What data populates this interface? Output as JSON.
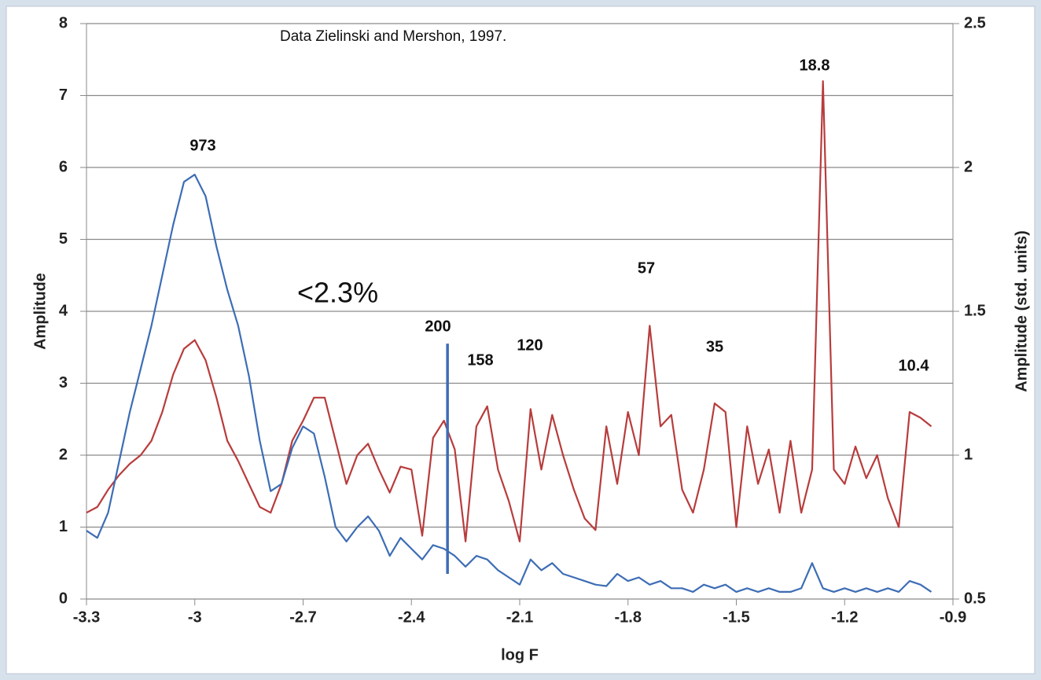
{
  "chart_data": {
    "type": "line",
    "xlabel": "log F",
    "ylabel": "Amplitude",
    "y2label": "Amplitude (std. units)",
    "xlim": [
      -3.3,
      -0.9
    ],
    "xticks": [
      -3.3,
      -3,
      -2.7,
      -2.4,
      -2.1,
      -1.8,
      -1.5,
      -1.2,
      -0.9
    ],
    "ylim": [
      0,
      8
    ],
    "yticks": [
      0,
      1,
      2,
      3,
      4,
      5,
      6,
      7,
      8
    ],
    "y2lim": [
      0.5,
      2.5
    ],
    "y2ticks": [
      0.5,
      1,
      1.5,
      2,
      2.5
    ],
    "grid": true,
    "x": [
      -3.3,
      -3.27,
      -3.24,
      -3.21,
      -3.18,
      -3.15,
      -3.12,
      -3.09,
      -3.06,
      -3.03,
      -3.0,
      -2.97,
      -2.94,
      -2.91,
      -2.88,
      -2.85,
      -2.82,
      -2.79,
      -2.76,
      -2.73,
      -2.7,
      -2.67,
      -2.64,
      -2.61,
      -2.58,
      -2.55,
      -2.52,
      -2.49,
      -2.46,
      -2.43,
      -2.4,
      -2.37,
      -2.34,
      -2.31,
      -2.28,
      -2.25,
      -2.22,
      -2.19,
      -2.16,
      -2.13,
      -2.1,
      -2.07,
      -2.04,
      -2.01,
      -1.98,
      -1.95,
      -1.92,
      -1.89,
      -1.86,
      -1.83,
      -1.8,
      -1.77,
      -1.74,
      -1.71,
      -1.68,
      -1.65,
      -1.62,
      -1.59,
      -1.56,
      -1.53,
      -1.5,
      -1.47,
      -1.44,
      -1.41,
      -1.38,
      -1.35,
      -1.32,
      -1.29,
      -1.26,
      -1.23,
      -1.2,
      -1.17,
      -1.14,
      -1.11,
      -1.08,
      -1.05,
      -1.02,
      -0.99,
      -0.96
    ],
    "series": [
      {
        "color": "#3d6db5",
        "values": [
          0.95,
          0.85,
          1.2,
          1.9,
          2.6,
          3.2,
          3.8,
          4.5,
          5.2,
          5.8,
          5.9,
          5.6,
          4.9,
          4.3,
          3.8,
          3.1,
          2.2,
          1.5,
          1.6,
          2.1,
          2.4,
          2.3,
          1.7,
          1.0,
          0.8,
          1.0,
          1.15,
          0.95,
          0.6,
          0.85,
          0.7,
          0.55,
          0.75,
          0.7,
          0.6,
          0.45,
          0.6,
          0.55,
          0.4,
          0.3,
          0.2,
          0.55,
          0.4,
          0.5,
          0.35,
          0.3,
          0.25,
          0.2,
          0.18,
          0.35,
          0.25,
          0.3,
          0.2,
          0.25,
          0.15,
          0.15,
          0.1,
          0.2,
          0.15,
          0.2,
          0.1,
          0.15,
          0.1,
          0.15,
          0.1,
          0.1,
          0.15,
          0.5,
          0.15,
          0.1,
          0.15,
          0.1,
          0.15,
          0.1,
          0.15,
          0.1,
          0.25,
          0.2,
          0.1
        ]
      },
      {
        "color": "#b83c3c",
        "axis": "y2",
        "values": [
          0.8,
          0.82,
          0.88,
          0.93,
          0.97,
          1.0,
          1.05,
          1.15,
          1.28,
          1.37,
          1.4,
          1.33,
          1.2,
          1.05,
          0.98,
          0.9,
          0.82,
          0.8,
          0.9,
          1.05,
          1.12,
          1.2,
          1.2,
          1.05,
          0.9,
          1.0,
          1.04,
          0.95,
          0.87,
          0.96,
          0.95,
          0.72,
          1.06,
          1.12,
          1.02,
          0.7,
          1.1,
          1.17,
          0.95,
          0.84,
          0.7,
          1.16,
          0.95,
          1.14,
          1.0,
          0.88,
          0.78,
          0.74,
          1.1,
          0.9,
          1.15,
          1.0,
          1.45,
          1.1,
          1.14,
          0.88,
          0.8,
          0.95,
          1.18,
          1.15,
          0.75,
          1.1,
          0.9,
          1.02,
          0.8,
          1.05,
          0.8,
          0.95,
          2.3,
          0.95,
          0.9,
          1.03,
          0.92,
          1.0,
          0.85,
          0.75,
          1.15,
          1.13,
          1.1
        ]
      }
    ],
    "vline": {
      "color": "#3d6db5",
      "x": -2.3,
      "ylim": [
        0.35,
        3.55
      ]
    },
    "annotations": [
      "Data Zielinski and Mershon, 1997.",
      "973",
      "<2.3%",
      "200",
      "158",
      "120",
      "57",
      "35",
      "18.8",
      "10.4"
    ]
  }
}
